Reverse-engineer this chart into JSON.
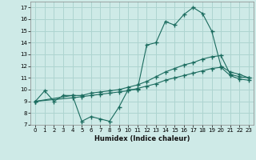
{
  "title": "",
  "xlabel": "Humidex (Indice chaleur)",
  "bg_color": "#ceeae7",
  "grid_color": "#add4d0",
  "line_color": "#1a6b5e",
  "xlim": [
    -0.5,
    23.5
  ],
  "ylim": [
    7,
    17.5
  ],
  "xticks": [
    0,
    1,
    2,
    3,
    4,
    5,
    6,
    7,
    8,
    9,
    10,
    11,
    12,
    13,
    14,
    15,
    16,
    17,
    18,
    19,
    20,
    21,
    22,
    23
  ],
  "yticks": [
    7,
    8,
    9,
    10,
    11,
    12,
    13,
    14,
    15,
    16,
    17
  ],
  "series1_x": [
    0,
    1,
    2,
    3,
    4,
    5,
    6,
    7,
    8,
    9,
    10,
    11,
    12,
    13,
    14,
    15,
    16,
    17,
    18,
    19,
    20,
    21,
    22,
    23
  ],
  "series1_y": [
    9.0,
    9.9,
    9.0,
    9.5,
    9.5,
    7.3,
    7.7,
    7.5,
    7.3,
    8.5,
    10.0,
    10.0,
    13.8,
    14.0,
    15.8,
    15.5,
    16.4,
    17.0,
    16.5,
    15.0,
    12.0,
    11.5,
    11.3,
    11.0
  ],
  "series2_x": [
    0,
    4,
    5,
    6,
    7,
    8,
    9,
    10,
    11,
    12,
    13,
    14,
    15,
    16,
    17,
    18,
    19,
    20,
    21,
    22,
    23
  ],
  "series2_y": [
    9.0,
    9.5,
    9.5,
    9.7,
    9.8,
    9.9,
    10.0,
    10.2,
    10.4,
    10.7,
    11.1,
    11.5,
    11.8,
    12.1,
    12.3,
    12.6,
    12.8,
    12.9,
    11.3,
    11.1,
    11.0
  ],
  "series3_x": [
    0,
    4,
    5,
    6,
    7,
    8,
    9,
    10,
    11,
    12,
    13,
    14,
    15,
    16,
    17,
    18,
    19,
    20,
    21,
    22,
    23
  ],
  "series3_y": [
    9.0,
    9.3,
    9.4,
    9.5,
    9.6,
    9.7,
    9.8,
    9.9,
    10.1,
    10.3,
    10.5,
    10.8,
    11.0,
    11.2,
    11.4,
    11.6,
    11.8,
    11.9,
    11.2,
    10.9,
    10.8
  ]
}
